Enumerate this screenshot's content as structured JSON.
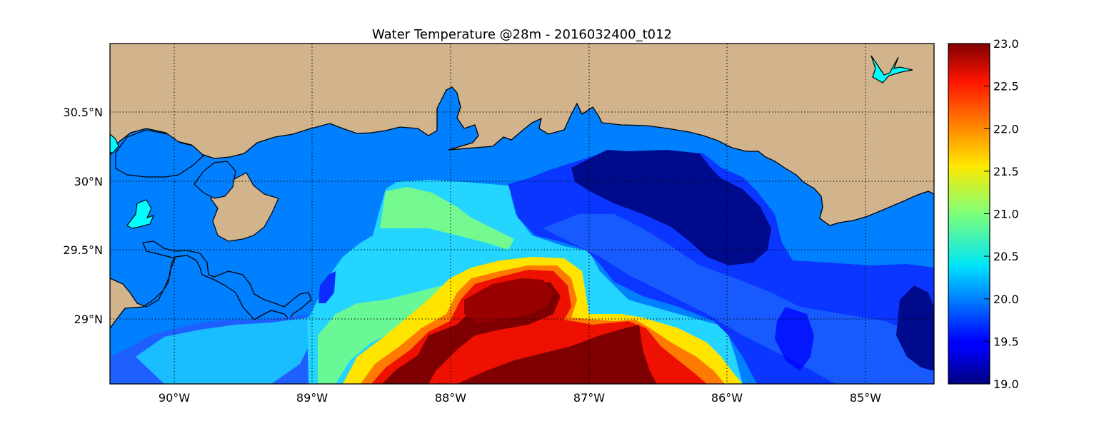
{
  "title": "Water Temperature @28m - 2016032400_t012",
  "map": {
    "lon_range": [
      -90.5,
      -84.5
    ],
    "lat_range": [
      28.55,
      31.0
    ],
    "lon_ticks": [
      {
        "value": -90,
        "label": "90°W"
      },
      {
        "value": -89,
        "label": "89°W"
      },
      {
        "value": -88,
        "label": "88°W"
      },
      {
        "value": -87,
        "label": "87°W"
      },
      {
        "value": -86,
        "label": "86°W"
      },
      {
        "value": -85,
        "label": "85°W"
      }
    ],
    "lat_ticks": [
      {
        "value": 30.5,
        "label": "30.5°N"
      },
      {
        "value": 30.0,
        "label": "30°N"
      },
      {
        "value": 29.5,
        "label": "29.5°N"
      },
      {
        "value": 29.0,
        "label": "29°N"
      }
    ],
    "grid": true,
    "colors": {
      "land": "#d2b48c",
      "inland_water": "#00ffff",
      "masked_water": "#0080ff",
      "coastline": "#000000"
    }
  },
  "colorbar": {
    "min": 19.0,
    "max": 23.0,
    "colormap": "jet",
    "ticks": [
      "23.0",
      "22.5",
      "22.0",
      "21.5",
      "21.0",
      "20.5",
      "20.0",
      "19.5",
      "19.0"
    ]
  }
}
